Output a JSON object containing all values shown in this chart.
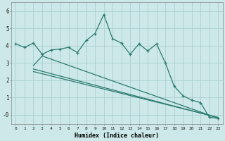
{
  "xlabel": "Humidex (Indice chaleur)",
  "bg_color": "#cde8e8",
  "grid_color": "#aacfcf",
  "line_color": "#2a7a6e",
  "xlim": [
    -0.5,
    23.5
  ],
  "ylim": [
    -0.55,
    6.5
  ],
  "yticks": [
    0,
    1,
    2,
    3,
    4,
    5,
    6
  ],
  "ytick_labels": [
    "-0",
    "1",
    "2",
    "3",
    "4",
    "5",
    "6"
  ],
  "xticks": [
    0,
    1,
    2,
    3,
    4,
    5,
    6,
    7,
    8,
    9,
    10,
    11,
    12,
    13,
    14,
    15,
    16,
    17,
    18,
    19,
    20,
    21,
    22,
    23
  ],
  "line1_x": [
    0,
    1,
    2,
    3,
    4,
    5,
    6,
    7,
    8,
    9,
    10,
    11,
    12,
    13,
    14,
    15,
    16,
    17,
    18,
    19,
    20,
    21,
    22,
    23
  ],
  "line1_y": [
    4.1,
    3.9,
    4.15,
    3.5,
    3.75,
    3.8,
    3.9,
    3.6,
    4.3,
    4.7,
    5.8,
    4.4,
    4.15,
    3.5,
    4.1,
    3.7,
    4.1,
    3.0,
    1.65,
    1.1,
    0.85,
    0.7,
    -0.15,
    -0.2
  ],
  "line2_x": [
    2,
    3,
    23
  ],
  "line2_y": [
    2.85,
    3.4,
    -0.2
  ],
  "line3_x": [
    2,
    23
  ],
  "line3_y": [
    2.5,
    -0.15
  ],
  "line4_x": [
    2,
    23
  ],
  "line4_y": [
    2.65,
    -0.17
  ],
  "xlabel_fontsize": 6.0,
  "ytick_fontsize": 5.5,
  "xtick_fontsize": 4.5
}
